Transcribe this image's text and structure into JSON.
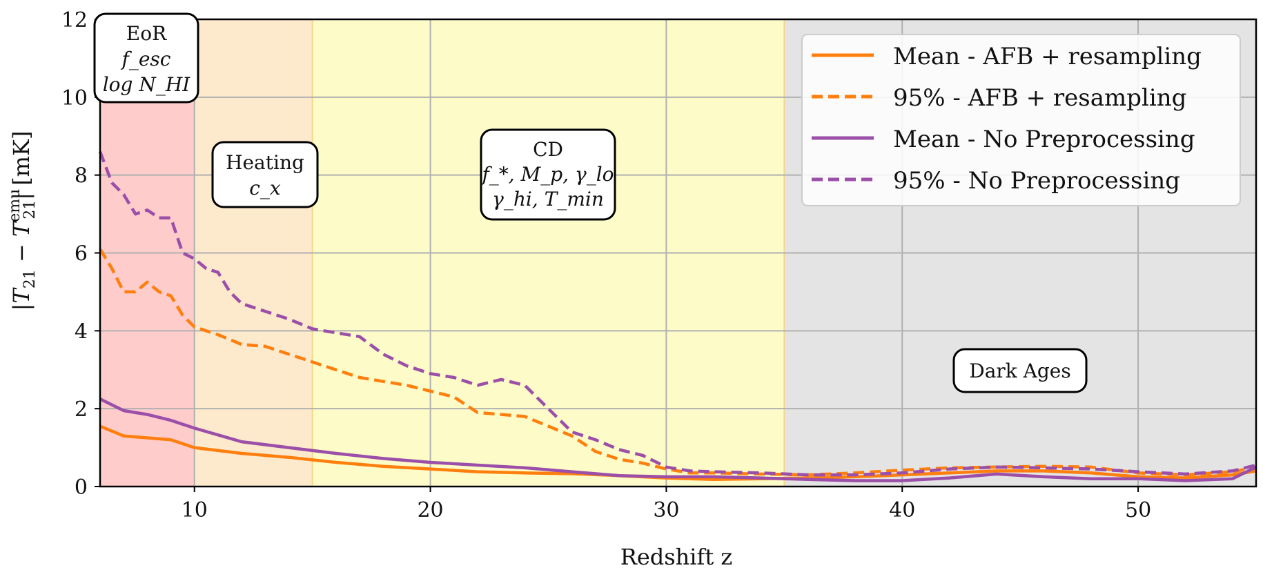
{
  "chart_data": {
    "type": "line",
    "xlabel": "Redshift z",
    "ylabel": "|T21 − T21^emu| [mK]",
    "ylabel_parts": {
      "pre": "|T",
      "sub1": "21",
      "mid": " − T",
      "sup2": "emu",
      "sub2": "21",
      "post": "| [mK]"
    },
    "xlim": [
      6,
      55
    ],
    "ylim": [
      0,
      12
    ],
    "x_ticks": [
      10,
      20,
      30,
      40,
      50
    ],
    "y_ticks": [
      0,
      2,
      4,
      6,
      8,
      10,
      12
    ],
    "grid": true,
    "legend_position": "top-right",
    "regions": [
      {
        "name": "EoR",
        "x0": 6,
        "x1": 10,
        "color": "#ffcccc"
      },
      {
        "name": "Heating",
        "x0": 10,
        "x1": 15,
        "color": "#fde9cc"
      },
      {
        "name": "CD",
        "x0": 15,
        "x1": 35,
        "color": "#fdfcc8"
      },
      {
        "name": "Dark Ages",
        "x0": 35,
        "x1": 55,
        "color": "#e4e4e4"
      }
    ],
    "region_labels": [
      {
        "lines": [
          "EoR",
          "f_esc",
          "log N_HI"
        ]
      },
      {
        "lines": [
          "Heating",
          "c_x"
        ]
      },
      {
        "lines": [
          "CD",
          "f_*, M_p, γ_lo",
          "γ_hi, T_min"
        ]
      },
      {
        "lines": [
          "Dark Ages"
        ]
      }
    ],
    "series": [
      {
        "name": "Mean - AFB + resampling",
        "color": "#ff7f0e",
        "dash": false,
        "x": [
          6,
          7,
          8,
          9,
          10,
          12,
          14,
          16,
          18,
          20,
          22,
          24,
          26,
          28,
          30,
          32,
          34,
          36,
          38,
          40,
          42,
          44,
          46,
          48,
          50,
          52,
          54,
          55
        ],
        "y": [
          1.55,
          1.3,
          1.25,
          1.2,
          1.0,
          0.85,
          0.75,
          0.62,
          0.52,
          0.45,
          0.38,
          0.35,
          0.33,
          0.28,
          0.22,
          0.18,
          0.2,
          0.22,
          0.25,
          0.3,
          0.35,
          0.4,
          0.4,
          0.35,
          0.25,
          0.22,
          0.3,
          0.4
        ]
      },
      {
        "name": "95% - AFB + resampling",
        "color": "#ff7f0e",
        "dash": true,
        "x": [
          6,
          6.5,
          7,
          7.5,
          8,
          8.5,
          9,
          9.5,
          10,
          11,
          12,
          13,
          14,
          15,
          16,
          17,
          18,
          19,
          20,
          21,
          22,
          23,
          24,
          25,
          26,
          27,
          28,
          29,
          30,
          31,
          32,
          34,
          36,
          38,
          40,
          42,
          44,
          46,
          48,
          50,
          52,
          54,
          55
        ],
        "y": [
          6.1,
          5.6,
          5.0,
          5.0,
          5.25,
          5.0,
          4.9,
          4.4,
          4.1,
          3.9,
          3.65,
          3.6,
          3.4,
          3.2,
          3.0,
          2.8,
          2.7,
          2.6,
          2.45,
          2.3,
          1.9,
          1.85,
          1.8,
          1.55,
          1.3,
          0.9,
          0.7,
          0.6,
          0.45,
          0.35,
          0.35,
          0.32,
          0.3,
          0.35,
          0.42,
          0.48,
          0.5,
          0.52,
          0.5,
          0.35,
          0.3,
          0.38,
          0.5
        ]
      },
      {
        "name": "Mean - No Preprocessing",
        "color": "#9b4fa8",
        "dash": false,
        "x": [
          6,
          7,
          8,
          9,
          10,
          12,
          14,
          16,
          18,
          20,
          22,
          24,
          26,
          28,
          30,
          32,
          34,
          36,
          38,
          40,
          42,
          44,
          46,
          48,
          50,
          52,
          54,
          55
        ],
        "y": [
          2.25,
          1.95,
          1.85,
          1.7,
          1.5,
          1.15,
          1.0,
          0.85,
          0.72,
          0.62,
          0.55,
          0.48,
          0.38,
          0.28,
          0.25,
          0.25,
          0.22,
          0.18,
          0.15,
          0.15,
          0.22,
          0.32,
          0.25,
          0.2,
          0.2,
          0.15,
          0.2,
          0.5
        ]
      },
      {
        "name": "95% - No Preprocessing",
        "color": "#9b4fa8",
        "dash": true,
        "x": [
          6,
          6.5,
          7,
          7.5,
          8,
          8.5,
          9,
          9.5,
          10,
          10.5,
          11,
          11.5,
          12,
          13,
          14,
          15,
          16,
          17,
          18,
          19,
          20,
          21,
          22,
          23,
          24,
          25,
          26,
          27,
          28,
          29,
          30,
          31,
          32,
          34,
          36,
          38,
          40,
          42,
          44,
          46,
          48,
          50,
          52,
          54,
          55
        ],
        "y": [
          8.6,
          7.8,
          7.5,
          7.0,
          7.1,
          6.9,
          6.9,
          6.0,
          5.85,
          5.6,
          5.5,
          5.0,
          4.7,
          4.5,
          4.3,
          4.05,
          3.95,
          3.85,
          3.4,
          3.1,
          2.9,
          2.8,
          2.6,
          2.75,
          2.6,
          2.0,
          1.4,
          1.2,
          0.95,
          0.8,
          0.5,
          0.4,
          0.38,
          0.35,
          0.3,
          0.3,
          0.35,
          0.45,
          0.5,
          0.48,
          0.45,
          0.38,
          0.32,
          0.4,
          0.55
        ]
      }
    ]
  }
}
